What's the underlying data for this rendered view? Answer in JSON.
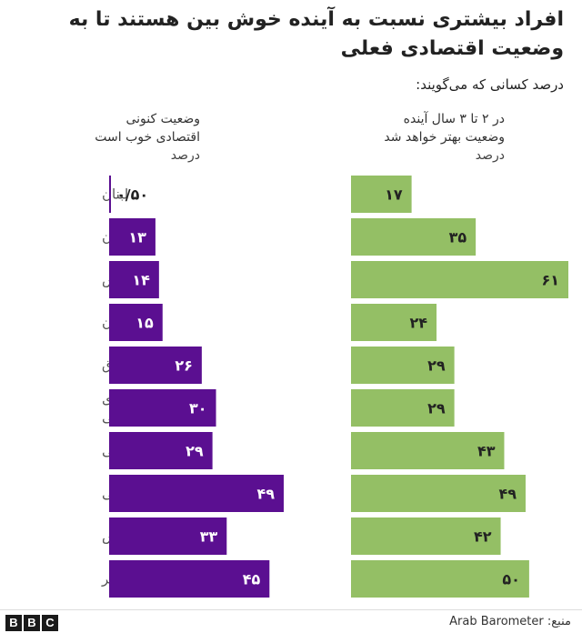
{
  "chart_data": {
    "type": "bar",
    "title": "افراد بیشتری نسبت به آینده خوش بین هستند تا به وضعیت اقتصادی فعلی",
    "subtitle": "درصد کسانی که می‌گویند:",
    "categories": [
      "لبنان",
      "سودان",
      "تونس",
      "اردن",
      "عراق",
      "سرزمین‌های فلسطینی",
      "لیبی",
      "موریتانی",
      "مراکش",
      "مصر"
    ],
    "category_lines": [
      [
        "لبنان"
      ],
      [
        "سودان"
      ],
      [
        "تونس"
      ],
      [
        "اردن"
      ],
      [
        "عراق"
      ],
      [
        "سرزمین‌های",
        "فلسطینی"
      ],
      [
        "لیبی"
      ],
      [
        "موریتانی"
      ],
      [
        "مراکش"
      ],
      [
        "مصر"
      ]
    ],
    "series": [
      {
        "header": [
          "وضعیت کنونی",
          "اقتصادی خوب است"
        ],
        "unit": "درصد",
        "color": "#5b0f91",
        "values": [
          0.5,
          13,
          14,
          15,
          26,
          30,
          29,
          49,
          33,
          45
        ],
        "labels": [
          "۰/۵۰",
          "۱۳",
          "۱۴",
          "۱۵",
          "۲۶",
          "۳۰",
          "۲۹",
          "۴۹",
          "۳۳",
          "۴۵"
        ]
      },
      {
        "header": [
          "در ۲ تا ۳ سال آینده",
          "وضعیت بهتر خواهد شد"
        ],
        "unit": "درصد",
        "color": "#94bf65",
        "values": [
          17,
          35,
          61,
          24,
          29,
          29,
          43,
          49,
          42,
          50
        ],
        "labels": [
          "۱۷",
          "۳۵",
          "۶۱",
          "۲۴",
          "۲۹",
          "۲۹",
          "۴۳",
          "۴۹",
          "۴۲",
          "۵۰"
        ]
      }
    ],
    "xlim": [
      0,
      61
    ],
    "grid": false,
    "legend": "none"
  },
  "footer": {
    "source": "منبع: Arab Barometer",
    "logo_letters": [
      "B",
      "B",
      "C"
    ]
  }
}
